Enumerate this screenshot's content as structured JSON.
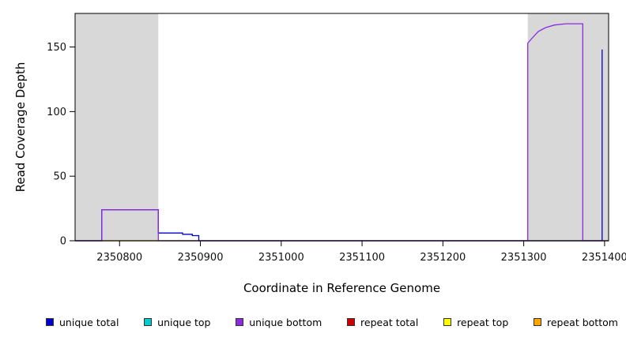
{
  "chart_data": {
    "type": "line",
    "title": "",
    "xlabel": "Coordinate in Reference Genome",
    "ylabel": "Read Coverage Depth",
    "xlim": [
      2350745,
      2351405
    ],
    "ylim": [
      0,
      176
    ],
    "xticks": [
      2350800,
      2350900,
      2351000,
      2351100,
      2351200,
      2351300,
      2351400
    ],
    "yticks": [
      0,
      50,
      100,
      150
    ],
    "grid": false,
    "plot_background": "#ffffff",
    "shade_color": "#d8d8d8",
    "shaded_regions": [
      {
        "x0": 2350745,
        "x1": 2350848
      },
      {
        "x0": 2351305,
        "x1": 2351405
      }
    ],
    "series": [
      {
        "name": "repeat top",
        "color": "#FFFF00",
        "points": [
          [
            2350745,
            0
          ],
          [
            2351405,
            0
          ]
        ]
      },
      {
        "name": "repeat bottom",
        "color": "#FFA500",
        "points": [
          [
            2350745,
            0
          ],
          [
            2351405,
            0
          ]
        ]
      },
      {
        "name": "repeat total",
        "color": "#CD0000",
        "points": [
          [
            2350745,
            0
          ],
          [
            2351405,
            0
          ]
        ]
      },
      {
        "name": "unique top",
        "color": "#00CED1",
        "points": [
          [
            2350745,
            0
          ],
          [
            2351405,
            0
          ]
        ]
      },
      {
        "name": "unique total",
        "color": "#0000CD",
        "points": [
          [
            2350745,
            0
          ],
          [
            2350778,
            0
          ],
          [
            2350778,
            24
          ],
          [
            2350848,
            24
          ],
          [
            2350848,
            6
          ],
          [
            2350878,
            6
          ],
          [
            2350878,
            5
          ],
          [
            2350890,
            5
          ],
          [
            2350890,
            4
          ],
          [
            2350898,
            4
          ],
          [
            2350898,
            0
          ],
          [
            2351397,
            0
          ],
          [
            2351397,
            148
          ]
        ]
      },
      {
        "name": "unique bottom",
        "color": "#8A2BE2",
        "points": [
          [
            2350745,
            0
          ],
          [
            2350778,
            0
          ],
          [
            2350778,
            24
          ],
          [
            2350848,
            24
          ],
          [
            2350848,
            0
          ],
          [
            2351305,
            0
          ],
          [
            2351305,
            153
          ],
          [
            2351312,
            158
          ],
          [
            2351318,
            162
          ],
          [
            2351327,
            165
          ],
          [
            2351338,
            167
          ],
          [
            2351352,
            168
          ],
          [
            2351373,
            168
          ],
          [
            2351373,
            0
          ],
          [
            2351405,
            0
          ]
        ]
      }
    ],
    "legend": {
      "position": "bottom",
      "items": [
        {
          "label": "unique total",
          "color": "#0000CD"
        },
        {
          "label": "unique top",
          "color": "#00CED1"
        },
        {
          "label": "unique bottom",
          "color": "#8A2BE2"
        },
        {
          "label": "repeat total",
          "color": "#CD0000"
        },
        {
          "label": "repeat top",
          "color": "#FFFF00"
        },
        {
          "label": "repeat bottom",
          "color": "#FFA500"
        }
      ]
    }
  }
}
